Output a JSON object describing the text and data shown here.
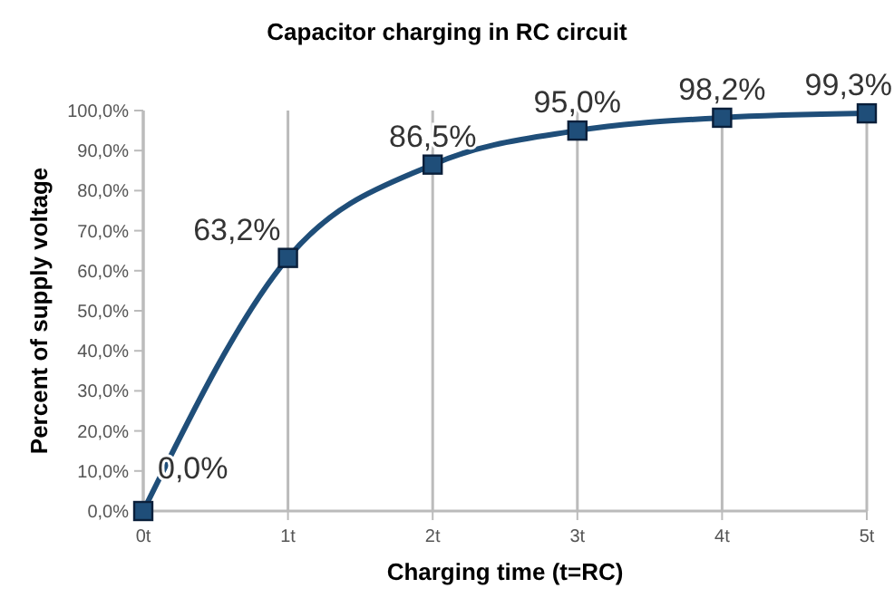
{
  "chart_data": {
    "type": "line",
    "title": "Capacitor charging in RC circuit",
    "xlabel": "Charging time (t=RC)",
    "ylabel": "Percent of supply voltage",
    "x": [
      0,
      1,
      2,
      3,
      4,
      5
    ],
    "series": [
      {
        "color": "#1f4e79",
        "values": [
          0,
          63.2,
          86.5,
          95,
          98.2,
          99.3
        ],
        "value_labels": [
          "0,0%",
          "63,2%",
          "86,5%",
          "95,0%",
          "98,2%",
          "99,3%"
        ]
      }
    ],
    "xlim": [
      0,
      5
    ],
    "xticks": [
      {
        "value": 0,
        "label": "0t"
      },
      {
        "value": 1,
        "label": "1t"
      },
      {
        "value": 2,
        "label": "2t"
      },
      {
        "value": 3,
        "label": "3t"
      },
      {
        "value": 4,
        "label": "4t"
      },
      {
        "value": 5,
        "label": "5t"
      }
    ],
    "ylim": [
      0,
      100
    ],
    "yticks": [
      {
        "value": 0,
        "label": "0,0%"
      },
      {
        "value": 10,
        "label": "10,0%"
      },
      {
        "value": 20,
        "label": "20,0%"
      },
      {
        "value": 30,
        "label": "30,0%"
      },
      {
        "value": 40,
        "label": "40,0%"
      },
      {
        "value": 50,
        "label": "50,0%"
      },
      {
        "value": 60,
        "label": "60,0%"
      },
      {
        "value": 70,
        "label": "70,0%"
      },
      {
        "value": 80,
        "label": "80,0%"
      },
      {
        "value": 90,
        "label": "90,0%"
      },
      {
        "value": 100,
        "label": "100,0%"
      }
    ],
    "grid": "x",
    "marker": "square",
    "line_style": "solid"
  }
}
